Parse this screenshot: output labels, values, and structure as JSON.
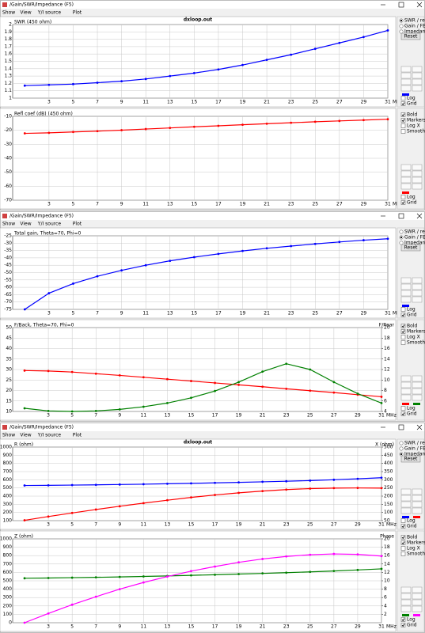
{
  "windows": [
    {
      "title": "/Gain/SWR/Impedance (F5)",
      "menu": [
        "Show",
        "View",
        "Y/I source",
        "Plot"
      ],
      "options": [
        "SWR / refl",
        "Gain / FB",
        "Impedance"
      ],
      "selected": 0,
      "reset": "Reset",
      "top_checks": [
        "Log",
        "Grid"
      ],
      "top_checked": [
        false,
        true
      ],
      "bottom_checks": [
        "Bold",
        "Markers",
        "Log X",
        "Smooth"
      ],
      "bottom_checked": [
        true,
        true,
        false,
        false
      ],
      "bottom_axis_checks": [
        "Log",
        "Grid"
      ],
      "bottom_axis_checked": [
        false,
        true
      ]
    },
    {
      "title": "/Gain/SWR/Impedance (F5)",
      "menu": [
        "Show",
        "View",
        "Y/I source",
        "Plot"
      ],
      "options": [
        "SWR / refl",
        "Gain / FB",
        "Impedance"
      ],
      "selected": 1,
      "reset": "Reset",
      "top_checks": [
        "Log",
        "Grid"
      ],
      "top_checked": [
        false,
        true
      ],
      "bottom_checks": [
        "Bold",
        "Markers",
        "Log X",
        "Smooth"
      ],
      "bottom_checked": [
        true,
        true,
        false,
        false
      ],
      "bottom_axis_checks": [
        "Log",
        "Grid"
      ],
      "bottom_axis_checked": [
        false,
        true
      ]
    },
    {
      "title": "/Gain/SWR/Impedance (F5)",
      "menu": [
        "Show",
        "View",
        "Y/I source",
        "Plot"
      ],
      "options": [
        "SWR / refl",
        "Gain / FB",
        "Impedance"
      ],
      "selected": 2,
      "reset": "Reset",
      "top_checks": [
        "Log",
        "Grid"
      ],
      "top_checked": [
        false,
        true
      ],
      "bottom_checks": [
        "Bold",
        "Markers",
        "Log X",
        "Smooth"
      ],
      "bottom_checked": [
        true,
        true,
        false,
        false
      ],
      "bottom_axis_checks": [
        "Log",
        "Grid"
      ],
      "bottom_axis_checked": [
        true,
        true
      ]
    }
  ],
  "chart_data": [
    {
      "type": "line",
      "title": "dxloop.out",
      "ylabel": "SWR (450 ohm)",
      "xlabel": "MHz",
      "grid": true,
      "x": [
        1,
        3,
        5,
        7,
        9,
        11,
        13,
        15,
        17,
        19,
        21,
        23,
        25,
        27,
        29,
        31
      ],
      "xlim": [
        0,
        31
      ],
      "xticks": [
        3,
        5,
        7,
        9,
        11,
        13,
        15,
        17,
        19,
        21,
        23,
        25,
        27,
        29,
        31
      ],
      "ylim": [
        1,
        2
      ],
      "yticks": [
        1,
        1.1,
        1.2,
        1.3,
        1.4,
        1.5,
        1.6,
        1.7,
        1.8,
        1.9,
        2
      ],
      "series": [
        {
          "color": "#0000ff",
          "values": [
            1.17,
            1.18,
            1.19,
            1.21,
            1.23,
            1.26,
            1.3,
            1.34,
            1.39,
            1.45,
            1.52,
            1.59,
            1.67,
            1.75,
            1.83,
            1.92
          ]
        }
      ]
    },
    {
      "type": "line",
      "ylabel": "Refl coef (dB) (450 ohm)",
      "xlabel": "MHz",
      "grid": true,
      "x": [
        1,
        3,
        5,
        7,
        9,
        11,
        13,
        15,
        17,
        19,
        21,
        23,
        25,
        27,
        29,
        31
      ],
      "xlim": [
        0,
        31
      ],
      "xticks": [
        3,
        5,
        7,
        9,
        11,
        13,
        15,
        17,
        19,
        21,
        23,
        25,
        27,
        29,
        31
      ],
      "ylim": [
        -70,
        -10
      ],
      "yticks": [
        -10,
        -20,
        -30,
        -40,
        -50,
        -60,
        -70
      ],
      "series": [
        {
          "color": "#ff0000",
          "values": [
            -22.2,
            -21.8,
            -21.2,
            -20.6,
            -19.9,
            -19.1,
            -18.3,
            -17.5,
            -16.8,
            -16,
            -15.3,
            -14.6,
            -13.9,
            -13.3,
            -12.7,
            -12.1
          ]
        }
      ]
    },
    {
      "type": "line",
      "ylabel": "Total gain, Theta=70, Phi=0",
      "xlabel": "MHz",
      "grid": true,
      "x": [
        1,
        3,
        5,
        7,
        9,
        11,
        13,
        15,
        17,
        19,
        21,
        23,
        25,
        27,
        29,
        31
      ],
      "xlim": [
        0,
        31
      ],
      "xticks": [
        3,
        5,
        7,
        9,
        11,
        13,
        15,
        17,
        19,
        21,
        23,
        25,
        27,
        29,
        31
      ],
      "ylim": [
        -75,
        -25
      ],
      "yticks": [
        -25,
        -30,
        -35,
        -40,
        -45,
        -50,
        -55,
        -60,
        -65,
        -70,
        -75
      ],
      "series": [
        {
          "color": "#0000ff",
          "values": [
            -75,
            -64,
            -57.5,
            -52.5,
            -48.5,
            -45,
            -42,
            -39.5,
            -37.3,
            -35.3,
            -33.5,
            -32,
            -30.5,
            -29.2,
            -28,
            -27
          ]
        }
      ]
    },
    {
      "type": "line",
      "ylabel": "F/Back, Theta=70, Phi=0",
      "y2label": "F/Rear",
      "xlabel": "MHz",
      "grid": true,
      "x": [
        1,
        3,
        5,
        7,
        9,
        11,
        13,
        15,
        17,
        19,
        21,
        23,
        25,
        27,
        29,
        31
      ],
      "xlim": [
        0,
        31
      ],
      "xticks": [
        3,
        5,
        7,
        9,
        11,
        13,
        15,
        17,
        19,
        21,
        23,
        25,
        27,
        29,
        31
      ],
      "ylim": [
        10,
        50
      ],
      "yticks": [
        10,
        15,
        20,
        25,
        30,
        35,
        40,
        45,
        50
      ],
      "y2lim": [
        4,
        20
      ],
      "y2ticks": [
        4,
        6,
        8,
        10,
        12,
        14,
        16,
        18,
        20
      ],
      "series": [
        {
          "color": "#ff0000",
          "values": [
            29.5,
            29.3,
            28.8,
            28,
            27.2,
            26.3,
            25.4,
            24.5,
            23.6,
            22.7,
            21.8,
            20.8,
            19.9,
            19,
            18,
            17
          ]
        },
        {
          "color": "#008000",
          "axis": "y2",
          "values": [
            4.6,
            4.1,
            4,
            4.1,
            4.4,
            4.9,
            5.6,
            6.6,
            7.9,
            9.6,
            11.6,
            13.1,
            12,
            9.6,
            7.4,
            5.6
          ]
        }
      ]
    },
    {
      "type": "line",
      "title": "dxloop.out",
      "ylabel": "R (ohm)",
      "y2label": "X (ohm)",
      "xlabel": "MHz",
      "grid": true,
      "x": [
        1,
        3,
        5,
        7,
        9,
        11,
        13,
        15,
        17,
        19,
        21,
        23,
        25,
        27,
        29,
        31
      ],
      "xlim": [
        0,
        31
      ],
      "xticks": [
        3,
        5,
        7,
        9,
        11,
        13,
        15,
        17,
        19,
        21,
        23,
        25,
        27,
        29,
        31
      ],
      "ylim": [
        100,
        1000
      ],
      "yticks": [
        100,
        200,
        300,
        400,
        500,
        600,
        700,
        800,
        900,
        1000
      ],
      "y2lim": [
        50,
        500
      ],
      "y2ticks": [
        50,
        100,
        150,
        200,
        250,
        300,
        350,
        400,
        450,
        500
      ],
      "series": [
        {
          "color": "#0000ff",
          "values": [
            530,
            532,
            535,
            538,
            542,
            546,
            551,
            556,
            562,
            568,
            575,
            582,
            590,
            600,
            612,
            625
          ]
        },
        {
          "color": "#ff0000",
          "axis": "y2",
          "values": [
            52,
            75,
            97,
            118,
            138,
            157,
            175,
            192,
            207,
            220,
            231,
            240,
            246,
            249,
            250,
            249
          ]
        }
      ]
    },
    {
      "type": "line",
      "ylabel": "Z (ohm)",
      "y2label": "Phase",
      "xlabel": "MHz",
      "grid": true,
      "x": [
        1,
        3,
        5,
        7,
        9,
        11,
        13,
        15,
        17,
        19,
        21,
        23,
        25,
        27,
        29,
        31
      ],
      "xlim": [
        0,
        31
      ],
      "xticks": [
        3,
        5,
        7,
        9,
        11,
        13,
        15,
        17,
        19,
        21,
        23,
        25,
        27,
        29,
        31
      ],
      "ylim": [
        0,
        1000
      ],
      "yticks": [
        0,
        100,
        200,
        300,
        400,
        500,
        600,
        700,
        800,
        900,
        1000
      ],
      "y2lim": [
        0,
        20
      ],
      "y2ticks": [
        2,
        4,
        6,
        8,
        10,
        12,
        14,
        16,
        18,
        20
      ],
      "series": [
        {
          "color": "#008000",
          "values": [
            530,
            533,
            537,
            541,
            546,
            552,
            558,
            565,
            572,
            580,
            588,
            597,
            606,
            617,
            629,
            642
          ]
        },
        {
          "color": "#ff00ff",
          "axis": "y2",
          "values": [
            0,
            2.2,
            4.3,
            6.2,
            8,
            9.6,
            11,
            12.3,
            13.4,
            14.4,
            15.2,
            15.8,
            16.2,
            16.4,
            16.3,
            15.9
          ]
        }
      ]
    }
  ]
}
